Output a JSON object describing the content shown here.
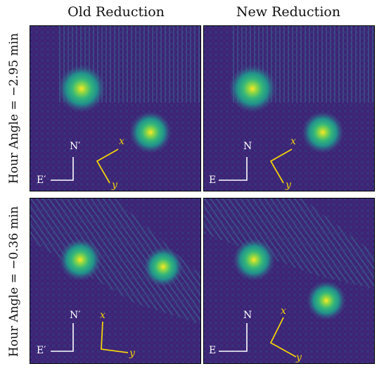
{
  "columns": {
    "left": "Old Reduction",
    "right": "New Reduction"
  },
  "rows": {
    "top": "Hour Angle = −2.95 min",
    "bottom": "Hour Angle = −0.36 min"
  },
  "panels": {
    "tl": {
      "north": "N′",
      "east": "E′",
      "xaxis": "x",
      "yaxis": "y"
    },
    "tr": {
      "north": "N",
      "east": "E",
      "xaxis": "x",
      "yaxis": "y"
    },
    "bl": {
      "north": "N′",
      "east": "E′",
      "xaxis": "x",
      "yaxis": "y"
    },
    "br": {
      "north": "N",
      "east": "E",
      "xaxis": "x",
      "yaxis": "y"
    }
  },
  "colors": {
    "background": "#3a1f6e",
    "compass": "#ffffff",
    "detector_axes": "#f2d20a",
    "colormap": "viridis"
  }
}
